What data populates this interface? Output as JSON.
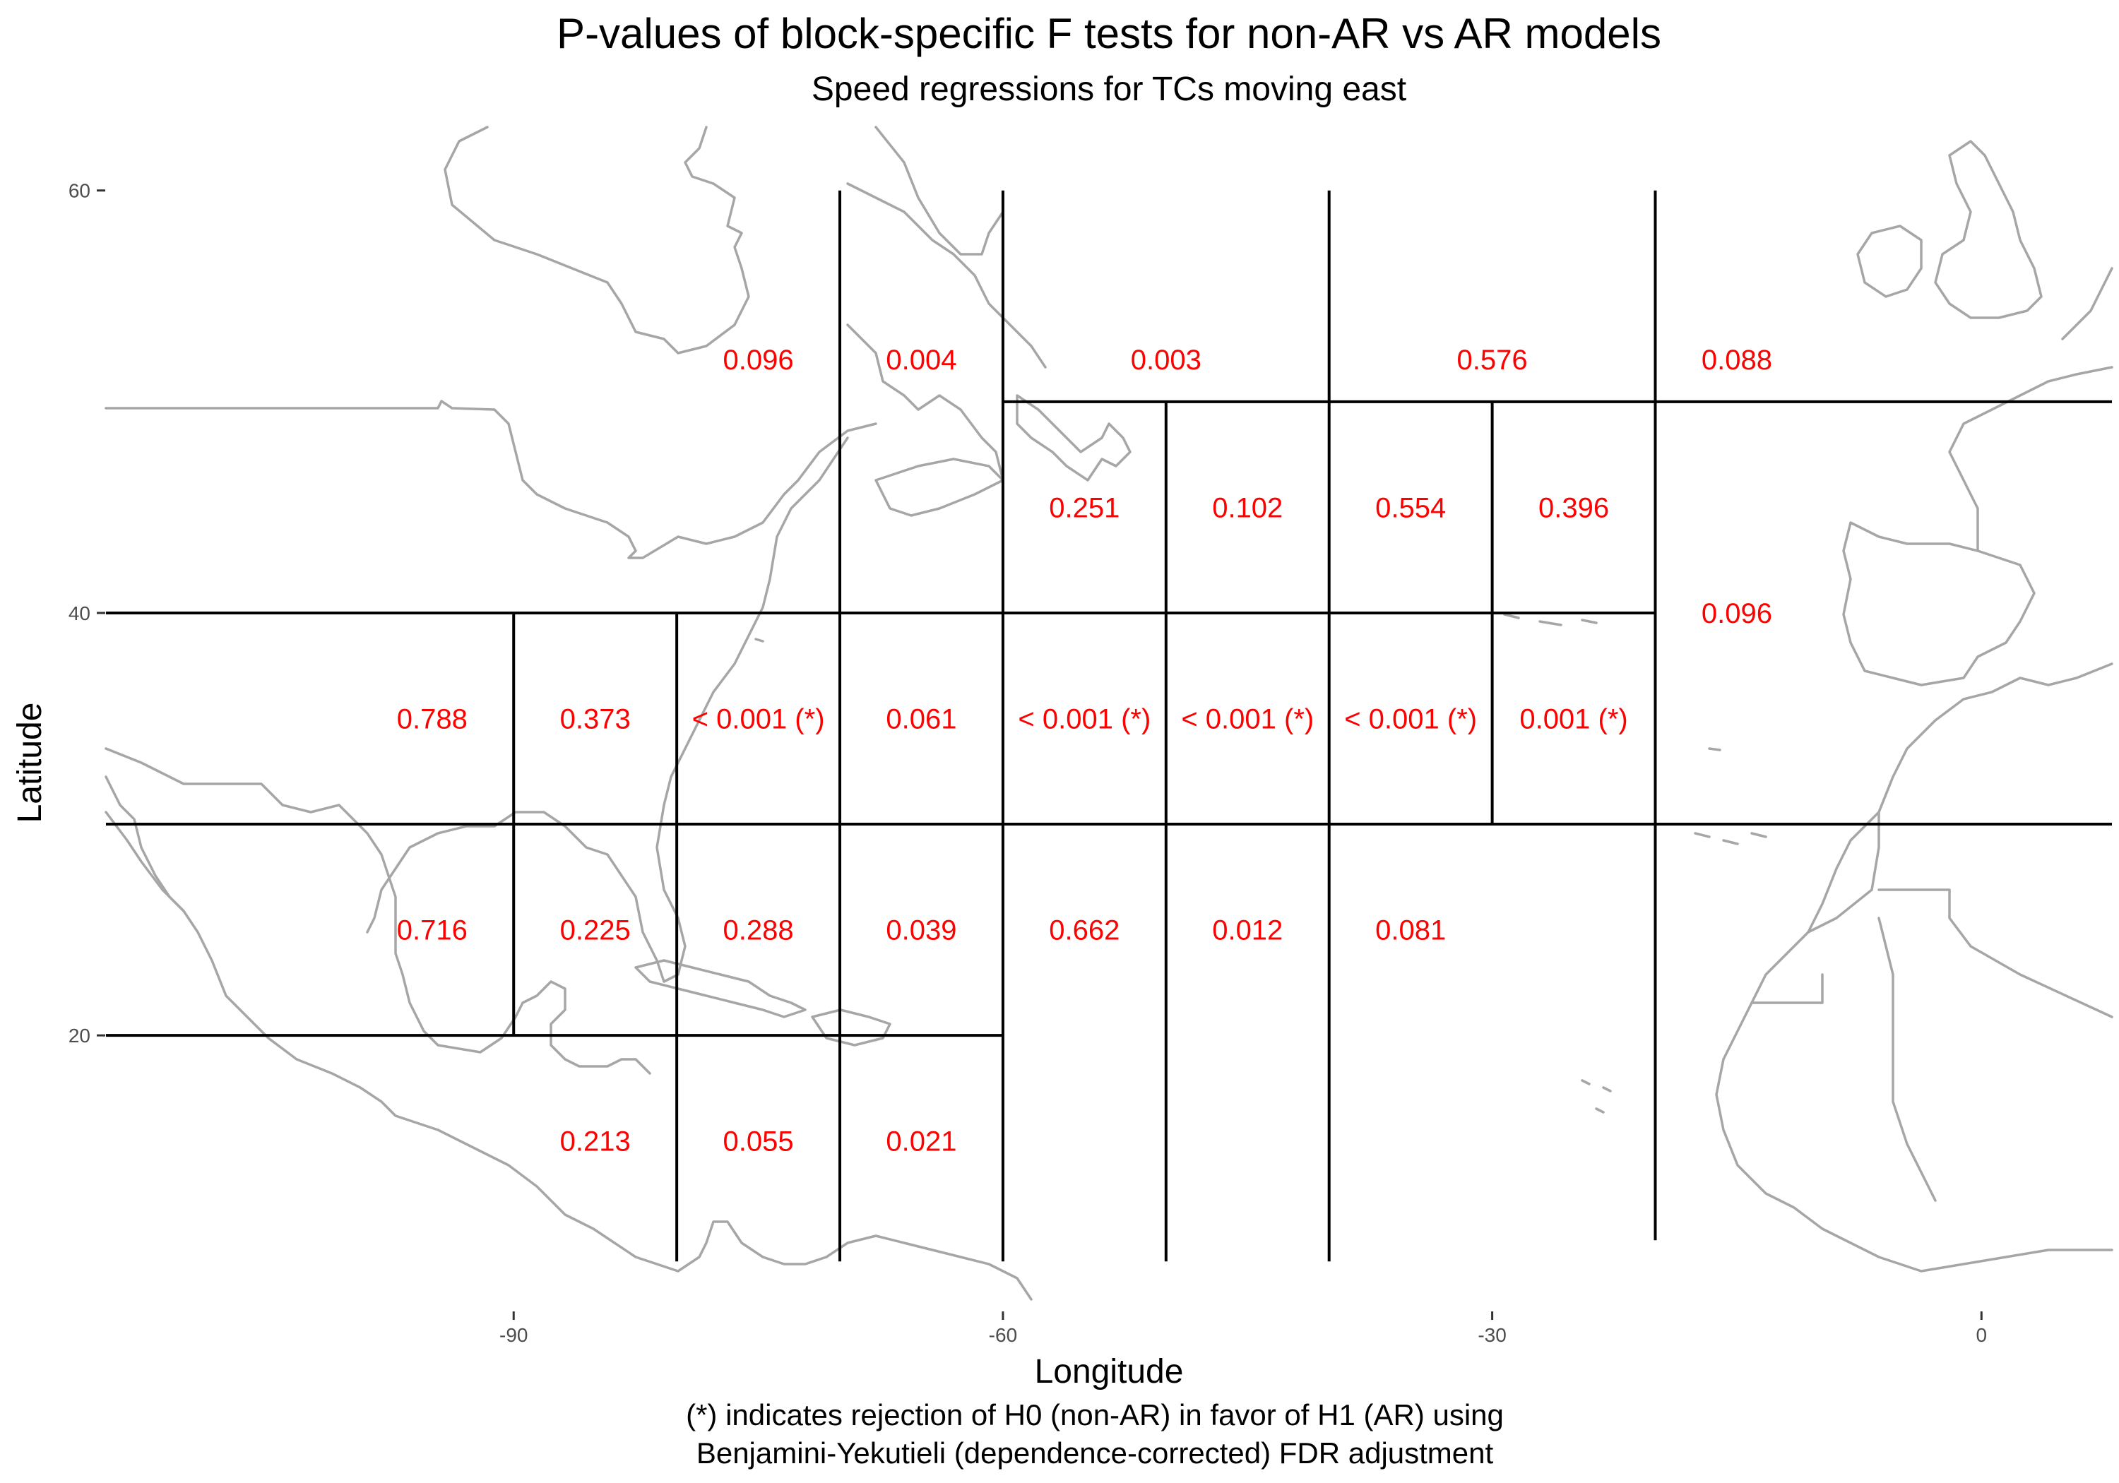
{
  "chart_data": {
    "type": "map-grid",
    "title": "P-values of block-specific F tests for non-AR vs AR models",
    "subtitle": "Speed regressions for TCs moving east",
    "xlabel": "Longitude",
    "ylabel": "Latitude",
    "caption_lines": [
      "(*) indicates rejection of H0 (non-AR) in favor of H1 (AR) using",
      "Benjamini-Yekutieli (dependence-corrected) FDR adjustment"
    ],
    "x_ticks": [
      {
        "value": -90,
        "label": "-90"
      },
      {
        "value": -60,
        "label": "-60"
      },
      {
        "value": -30,
        "label": "-30"
      },
      {
        "value": 0,
        "label": "0"
      }
    ],
    "y_ticks": [
      {
        "value": 20,
        "label": "20"
      },
      {
        "value": 40,
        "label": "40"
      },
      {
        "value": 60,
        "label": "60"
      }
    ],
    "xlim": [
      -115,
      8
    ],
    "ylim": [
      7,
      63
    ],
    "block_lines": [
      {
        "lon1": -115,
        "lat1": 40,
        "lon2": -20,
        "lat2": 40
      },
      {
        "lon1": -115,
        "lat1": 30,
        "lon2": 8,
        "lat2": 30
      },
      {
        "lon1": -115,
        "lat1": 20,
        "lon2": -60,
        "lat2": 20
      },
      {
        "lon1": -60,
        "lat1": 50,
        "lon2": 8,
        "lat2": 50
      },
      {
        "lon1": -90,
        "lat1": 40,
        "lon2": -90,
        "lat2": 20
      },
      {
        "lon1": -80,
        "lat1": 40,
        "lon2": -80,
        "lat2": 9.3
      },
      {
        "lon1": -70,
        "lat1": 60,
        "lon2": -70,
        "lat2": 9.3
      },
      {
        "lon1": -60,
        "lat1": 60,
        "lon2": -60,
        "lat2": 9.3
      },
      {
        "lon1": -50,
        "lat1": 50,
        "lon2": -50,
        "lat2": 9.3
      },
      {
        "lon1": -40,
        "lat1": 60,
        "lon2": -40,
        "lat2": 9.3
      },
      {
        "lon1": -30,
        "lat1": 50,
        "lon2": -30,
        "lat2": 30
      },
      {
        "lon1": -20,
        "lat1": 60,
        "lon2": -20,
        "lat2": 10.3
      }
    ],
    "p_values": [
      {
        "lon": -75,
        "lat": 52,
        "label": "0.096"
      },
      {
        "lon": -65,
        "lat": 52,
        "label": "0.004"
      },
      {
        "lon": -50,
        "lat": 52,
        "label": "0.003"
      },
      {
        "lon": -30,
        "lat": 52,
        "label": "0.576"
      },
      {
        "lon": -15,
        "lat": 52,
        "label": "0.088"
      },
      {
        "lon": -55,
        "lat": 45,
        "label": "0.251"
      },
      {
        "lon": -45,
        "lat": 45,
        "label": "0.102"
      },
      {
        "lon": -35,
        "lat": 45,
        "label": "0.554"
      },
      {
        "lon": -25,
        "lat": 45,
        "label": "0.396"
      },
      {
        "lon": -15,
        "lat": 40,
        "label": "0.096"
      },
      {
        "lon": -95,
        "lat": 35,
        "label": "0.788"
      },
      {
        "lon": -85,
        "lat": 35,
        "label": "0.373"
      },
      {
        "lon": -75,
        "lat": 35,
        "label": "< 0.001 (*)"
      },
      {
        "lon": -65,
        "lat": 35,
        "label": "0.061"
      },
      {
        "lon": -55,
        "lat": 35,
        "label": "< 0.001 (*)"
      },
      {
        "lon": -45,
        "lat": 35,
        "label": "< 0.001 (*)"
      },
      {
        "lon": -35,
        "lat": 35,
        "label": "< 0.001 (*)"
      },
      {
        "lon": -25,
        "lat": 35,
        "label": "0.001 (*)"
      },
      {
        "lon": -95,
        "lat": 25,
        "label": "0.716"
      },
      {
        "lon": -85,
        "lat": 25,
        "label": "0.225"
      },
      {
        "lon": -75,
        "lat": 25,
        "label": "0.288"
      },
      {
        "lon": -65,
        "lat": 25,
        "label": "0.039"
      },
      {
        "lon": -55,
        "lat": 25,
        "label": "0.662"
      },
      {
        "lon": -45,
        "lat": 25,
        "label": "0.012"
      },
      {
        "lon": -35,
        "lat": 25,
        "label": "0.081"
      },
      {
        "lon": -85,
        "lat": 15,
        "label": "0.213"
      },
      {
        "lon": -75,
        "lat": 15,
        "label": "0.055"
      },
      {
        "lon": -65,
        "lat": 15,
        "label": "0.021"
      }
    ]
  }
}
